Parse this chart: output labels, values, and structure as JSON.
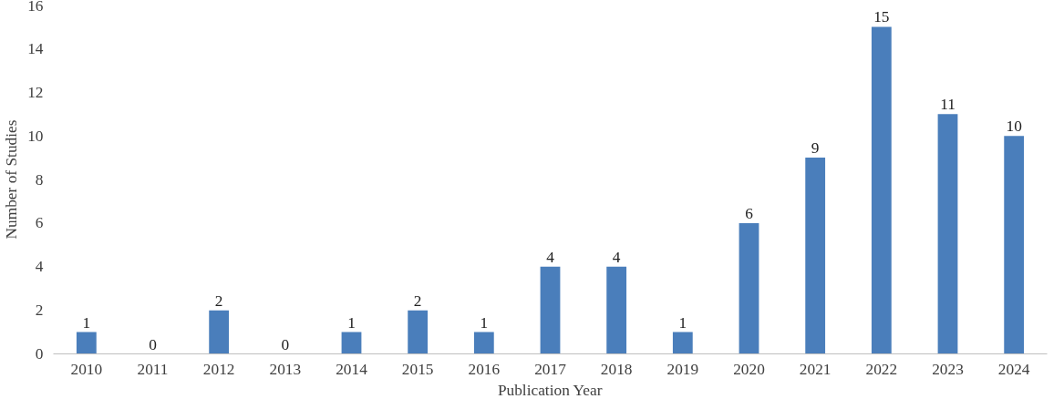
{
  "chart_data": {
    "type": "bar",
    "xlabel": "Publication Year",
    "ylabel": "Number of Studies",
    "categories": [
      "2010",
      "2011",
      "2012",
      "2013",
      "2014",
      "2015",
      "2016",
      "2017",
      "2018",
      "2019",
      "2020",
      "2021",
      "2022",
      "2023",
      "2024"
    ],
    "values": [
      1,
      0,
      2,
      0,
      1,
      2,
      1,
      4,
      4,
      1,
      6,
      9,
      15,
      11,
      10
    ],
    "color": "#4a7ebb",
    "ylim": [
      0,
      16
    ],
    "yticks": [
      0,
      2,
      4,
      6,
      8,
      10,
      12,
      14,
      16
    ],
    "grid": false,
    "data_labels": true
  }
}
